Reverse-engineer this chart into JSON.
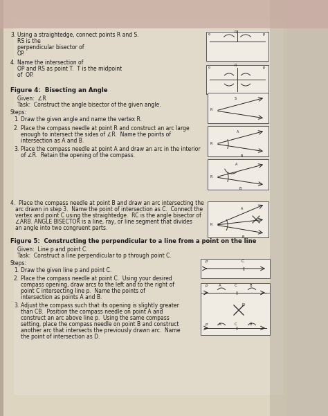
{
  "bg_color": "#b8a898",
  "page_color": "#e8e0d0",
  "text_color": "#222222",
  "diagram_color": "#333333",
  "top_section": {
    "steps": [
      {
        "num": "3.",
        "lines": [
          "Using a straightedge, connect points R and S. RS is the",
          "perpendicular bisector of OP."
        ]
      },
      {
        "num": "4.",
        "lines": [
          "Name the intersection of OP and RS as point T.  T is the midpoint",
          "of  OP."
        ]
      }
    ]
  },
  "fig4": {
    "title": "Figure 4:  Bisecting an Angle",
    "given": "Given:  ∠R",
    "task": "Task:  Construct the angle bisector of the given angle.",
    "steps": [
      {
        "num": "1.",
        "lines": [
          "Draw the given angle and name the vertex R."
        ]
      },
      {
        "num": "2.",
        "lines": [
          "Place the compass needle at point R and construct an arc large",
          "enough to intersect the sides of ∠R.  Name the points of",
          "intersection as A and B."
        ]
      },
      {
        "num": "3.",
        "lines": [
          "Place the compass needle at point A and draw an arc in the interior",
          "of ∠R.  Retain the opening of the compass."
        ]
      }
    ],
    "step4_lines": [
      "4.  Place the compass needle at point B and draw an arc intersecting the",
      "arc drawn in step 3.  Name the point of intersection as C.  Connect the",
      "vertex and point C using the straightedge.  RC is the angle bisector of",
      "∠ARB. ANGLE BISECTOR is a line, ray, or line segment that divides",
      "an angle into two congruent parts."
    ]
  },
  "fig5": {
    "title": "Figure 5:  Constructing the perpendicular to a line from a point on the line",
    "given": "Given:  Line p and point C.",
    "task": "Task:  Construct a line perpendicular to p through point C.",
    "steps": [
      {
        "num": "1.",
        "lines": [
          "Draw the given line p and point C."
        ]
      },
      {
        "num": "2.",
        "lines": [
          "Place the compass needle at point C.  Using your desired",
          "compass opening, draw arcs to the left and to the right of",
          "point C intersecting line p.  Name the points of",
          "intersection as points A and B."
        ]
      },
      {
        "num": "3.",
        "lines": [
          "Adjust the compass such that its opening is slightly greater",
          "than CB.  Position the compass needle on point A and",
          "construct an arc above line p.  Using the same compass",
          "setting, place the compass needle on point B and construct",
          "another arc that intersects the previously drawn arc.  Name",
          "the point of intersection as D."
        ]
      }
    ]
  }
}
